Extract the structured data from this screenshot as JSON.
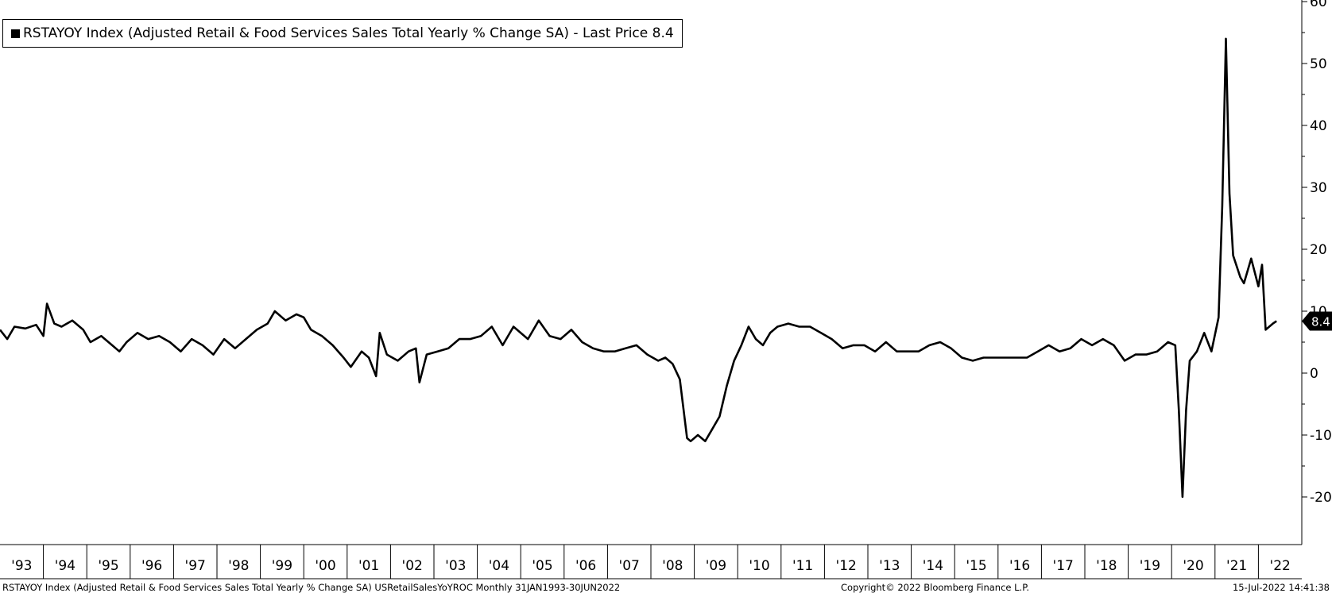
{
  "legend": {
    "text": "RSTAYOY Index (Adjusted Retail & Food Services Sales Total Yearly % Change SA) - Last Price 8.4"
  },
  "footer": {
    "left": "RSTAYOY Index (Adjusted Retail & Food Services Sales Total Yearly % Change SA) USRetailSalesYoYROC  Monthly 31JAN1993-30JUN2022",
    "center": "Copyright© 2022 Bloomberg Finance L.P.",
    "right": "15-Jul-2022 14:41:38"
  },
  "chart_data": {
    "type": "line",
    "title": "",
    "xlabel": "",
    "ylabel": "",
    "ylim": [
      -25,
      60
    ],
    "yticks": [
      60,
      50,
      40,
      30,
      20,
      10,
      0,
      -10,
      -20
    ],
    "ytick_labels": [
      "60",
      "50",
      "40",
      "30",
      "20",
      "10",
      "0",
      "-10",
      "-20"
    ],
    "x_range": [
      "1993-01",
      "2022-06"
    ],
    "xtick_labels": [
      "'93",
      "'94",
      "'95",
      "'96",
      "'97",
      "'98",
      "'99",
      "'00",
      "'01",
      "'02",
      "'03",
      "'04",
      "'05",
      "'06",
      "'07",
      "'08",
      "'09",
      "'10",
      "'11",
      "'12",
      "'13",
      "'14",
      "'15",
      "'16",
      "'17",
      "'18",
      "'19",
      "'20",
      "'21",
      "'22"
    ],
    "last_price_label": "8.4",
    "line_color": "#000000",
    "series": [
      {
        "name": "RSTAYOY Index",
        "points": [
          [
            "1993-01",
            7.0
          ],
          [
            "1993-03",
            5.5
          ],
          [
            "1993-05",
            7.5
          ],
          [
            "1993-08",
            7.2
          ],
          [
            "1993-11",
            7.8
          ],
          [
            "1994-01",
            6.0
          ],
          [
            "1994-02",
            11.2
          ],
          [
            "1994-04",
            8.0
          ],
          [
            "1994-06",
            7.5
          ],
          [
            "1994-09",
            8.5
          ],
          [
            "1994-12",
            7.0
          ],
          [
            "1995-02",
            5.0
          ],
          [
            "1995-05",
            6.0
          ],
          [
            "1995-08",
            4.5
          ],
          [
            "1995-10",
            3.5
          ],
          [
            "1995-12",
            5.0
          ],
          [
            "1996-03",
            6.5
          ],
          [
            "1996-06",
            5.5
          ],
          [
            "1996-09",
            6.0
          ],
          [
            "1996-12",
            5.0
          ],
          [
            "1997-03",
            3.5
          ],
          [
            "1997-06",
            5.5
          ],
          [
            "1997-09",
            4.5
          ],
          [
            "1997-12",
            3.0
          ],
          [
            "1998-03",
            5.5
          ],
          [
            "1998-06",
            4.0
          ],
          [
            "1998-09",
            5.5
          ],
          [
            "1998-12",
            7.0
          ],
          [
            "1999-03",
            8.0
          ],
          [
            "1999-05",
            10.0
          ],
          [
            "1999-08",
            8.5
          ],
          [
            "1999-11",
            9.5
          ],
          [
            "2000-01",
            9.0
          ],
          [
            "2000-03",
            7.0
          ],
          [
            "2000-06",
            6.0
          ],
          [
            "2000-09",
            4.5
          ],
          [
            "2000-12",
            2.5
          ],
          [
            "2001-02",
            1.0
          ],
          [
            "2001-05",
            3.5
          ],
          [
            "2001-07",
            2.5
          ],
          [
            "2001-09",
            -0.5
          ],
          [
            "2001-10",
            6.5
          ],
          [
            "2001-12",
            3.0
          ],
          [
            "2002-03",
            2.0
          ],
          [
            "2002-06",
            3.5
          ],
          [
            "2002-08",
            4.0
          ],
          [
            "2002-09",
            -1.5
          ],
          [
            "2002-11",
            3.0
          ],
          [
            "2003-02",
            3.5
          ],
          [
            "2003-05",
            4.0
          ],
          [
            "2003-08",
            5.5
          ],
          [
            "2003-11",
            5.5
          ],
          [
            "2004-02",
            6.0
          ],
          [
            "2004-05",
            7.5
          ],
          [
            "2004-08",
            4.5
          ],
          [
            "2004-11",
            7.5
          ],
          [
            "2005-03",
            5.5
          ],
          [
            "2005-06",
            8.5
          ],
          [
            "2005-09",
            6.0
          ],
          [
            "2005-12",
            5.5
          ],
          [
            "2006-03",
            7.0
          ],
          [
            "2006-06",
            5.0
          ],
          [
            "2006-09",
            4.0
          ],
          [
            "2006-12",
            3.5
          ],
          [
            "2007-03",
            3.5
          ],
          [
            "2007-06",
            4.0
          ],
          [
            "2007-09",
            4.5
          ],
          [
            "2007-12",
            3.0
          ],
          [
            "2008-03",
            2.0
          ],
          [
            "2008-05",
            2.5
          ],
          [
            "2008-07",
            1.5
          ],
          [
            "2008-09",
            -1.0
          ],
          [
            "2008-11",
            -10.5
          ],
          [
            "2008-12",
            -11.0
          ],
          [
            "2009-02",
            -10.0
          ],
          [
            "2009-04",
            -11.0
          ],
          [
            "2009-06",
            -9.0
          ],
          [
            "2009-08",
            -7.0
          ],
          [
            "2009-10",
            -2.0
          ],
          [
            "2009-12",
            2.0
          ],
          [
            "2010-02",
            4.5
          ],
          [
            "2010-04",
            7.5
          ],
          [
            "2010-06",
            5.5
          ],
          [
            "2010-08",
            4.5
          ],
          [
            "2010-10",
            6.5
          ],
          [
            "2010-12",
            7.5
          ],
          [
            "2011-03",
            8.0
          ],
          [
            "2011-06",
            7.5
          ],
          [
            "2011-09",
            7.5
          ],
          [
            "2011-12",
            6.5
          ],
          [
            "2012-03",
            5.5
          ],
          [
            "2012-06",
            4.0
          ],
          [
            "2012-09",
            4.5
          ],
          [
            "2012-12",
            4.5
          ],
          [
            "2013-03",
            3.5
          ],
          [
            "2013-06",
            5.0
          ],
          [
            "2013-09",
            3.5
          ],
          [
            "2013-12",
            3.5
          ],
          [
            "2014-03",
            3.5
          ],
          [
            "2014-06",
            4.5
          ],
          [
            "2014-09",
            5.0
          ],
          [
            "2014-12",
            4.0
          ],
          [
            "2015-03",
            2.5
          ],
          [
            "2015-06",
            2.0
          ],
          [
            "2015-09",
            2.5
          ],
          [
            "2015-12",
            2.5
          ],
          [
            "2016-03",
            2.5
          ],
          [
            "2016-06",
            2.5
          ],
          [
            "2016-09",
            2.5
          ],
          [
            "2016-12",
            3.5
          ],
          [
            "2017-03",
            4.5
          ],
          [
            "2017-06",
            3.5
          ],
          [
            "2017-09",
            4.0
          ],
          [
            "2017-12",
            5.5
          ],
          [
            "2018-03",
            4.5
          ],
          [
            "2018-06",
            5.5
          ],
          [
            "2018-09",
            4.5
          ],
          [
            "2018-12",
            2.0
          ],
          [
            "2019-03",
            3.0
          ],
          [
            "2019-06",
            3.0
          ],
          [
            "2019-09",
            3.5
          ],
          [
            "2019-12",
            5.0
          ],
          [
            "2020-02",
            4.5
          ],
          [
            "2020-03",
            -6.0
          ],
          [
            "2020-04",
            -20.0
          ],
          [
            "2020-05",
            -6.0
          ],
          [
            "2020-06",
            2.0
          ],
          [
            "2020-08",
            3.5
          ],
          [
            "2020-10",
            6.5
          ],
          [
            "2020-12",
            3.5
          ],
          [
            "2021-02",
            9.0
          ],
          [
            "2021-03",
            27.0
          ],
          [
            "2021-04",
            54.0
          ],
          [
            "2021-05",
            29.0
          ],
          [
            "2021-06",
            19.0
          ],
          [
            "2021-08",
            15.5
          ],
          [
            "2021-09",
            14.5
          ],
          [
            "2021-11",
            18.5
          ],
          [
            "2022-01",
            14.0
          ],
          [
            "2022-02",
            17.5
          ],
          [
            "2022-03",
            7.0
          ],
          [
            "2022-05",
            8.0
          ],
          [
            "2022-06",
            8.4
          ]
        ]
      }
    ]
  }
}
